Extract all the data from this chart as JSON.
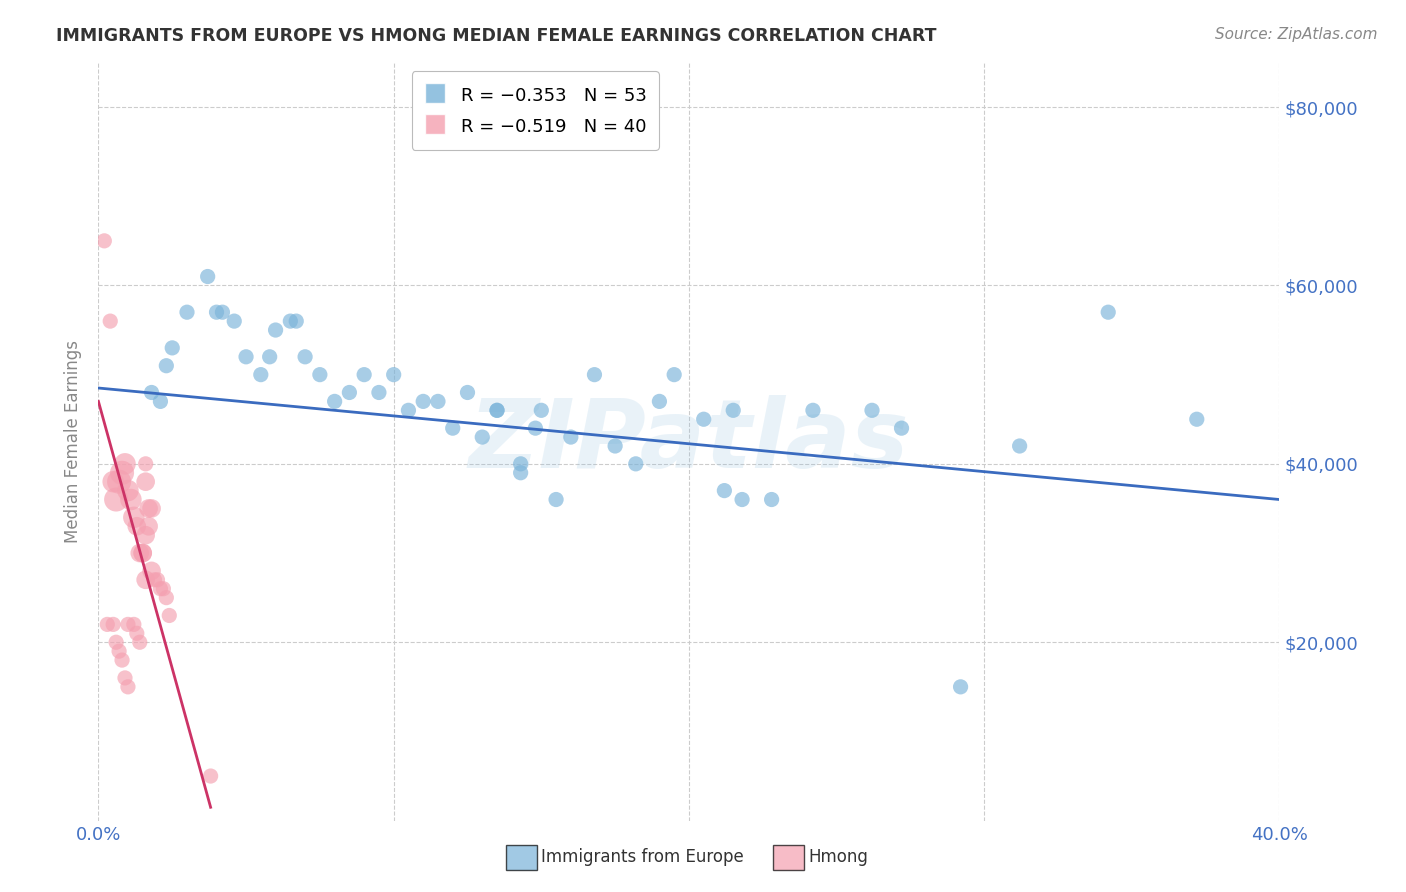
{
  "title": "IMMIGRANTS FROM EUROPE VS HMONG MEDIAN FEMALE EARNINGS CORRELATION CHART",
  "source": "Source: ZipAtlas.com",
  "ylabel": "Median Female Earnings",
  "xlim": [
    0.0,
    0.4
  ],
  "ylim": [
    0,
    85000
  ],
  "yticks": [
    0,
    20000,
    40000,
    60000,
    80000
  ],
  "ytick_labels_right": [
    "",
    "$20,000",
    "$40,000",
    "$60,000",
    "$80,000"
  ],
  "xticks": [
    0.0,
    0.05,
    0.1,
    0.15,
    0.2,
    0.25,
    0.3,
    0.35,
    0.4
  ],
  "xtick_labels": [
    "0.0%",
    "",
    "",
    "",
    "",
    "",
    "",
    "",
    "40.0%"
  ],
  "background_color": "#ffffff",
  "grid_color": "#cccccc",
  "blue_color": "#7ab3d9",
  "pink_color": "#f4a0b0",
  "blue_line_color": "#3a6bbf",
  "pink_line_color": "#cc3366",
  "label1": "Immigrants from Europe",
  "label2": "Hmong",
  "watermark": "ZIPatlas",
  "tick_label_color": "#4472c4",
  "ylabel_color": "#888888",
  "title_color": "#333333",
  "blue_scatter_x": [
    0.018,
    0.021,
    0.025,
    0.023,
    0.03,
    0.037,
    0.04,
    0.042,
    0.046,
    0.05,
    0.055,
    0.058,
    0.06,
    0.065,
    0.067,
    0.07,
    0.075,
    0.08,
    0.085,
    0.09,
    0.095,
    0.1,
    0.105,
    0.11,
    0.115,
    0.12,
    0.125,
    0.13,
    0.135,
    0.143,
    0.148,
    0.155,
    0.16,
    0.168,
    0.175,
    0.182,
    0.195,
    0.205,
    0.212,
    0.218,
    0.228,
    0.242,
    0.262,
    0.272,
    0.292,
    0.312,
    0.342,
    0.372,
    0.143,
    0.15,
    0.19,
    0.135,
    0.215
  ],
  "blue_scatter_y": [
    48000,
    47000,
    53000,
    51000,
    57000,
    61000,
    57000,
    57000,
    56000,
    52000,
    50000,
    52000,
    55000,
    56000,
    56000,
    52000,
    50000,
    47000,
    48000,
    50000,
    48000,
    50000,
    46000,
    47000,
    47000,
    44000,
    48000,
    43000,
    46000,
    40000,
    44000,
    36000,
    43000,
    50000,
    42000,
    40000,
    50000,
    45000,
    37000,
    36000,
    36000,
    46000,
    46000,
    44000,
    15000,
    42000,
    57000,
    45000,
    39000,
    46000,
    47000,
    46000,
    46000
  ],
  "pink_scatter_x": [
    0.002,
    0.004,
    0.005,
    0.006,
    0.007,
    0.008,
    0.009,
    0.01,
    0.011,
    0.012,
    0.013,
    0.014,
    0.015,
    0.016,
    0.017,
    0.018,
    0.019,
    0.02,
    0.021,
    0.022,
    0.023,
    0.024,
    0.016,
    0.017,
    0.018,
    0.015,
    0.016,
    0.003,
    0.005,
    0.006,
    0.007,
    0.008,
    0.009,
    0.01,
    0.01,
    0.012,
    0.013,
    0.014,
    0.038,
    0.016
  ],
  "pink_scatter_y": [
    65000,
    56000,
    38000,
    36000,
    38000,
    39000,
    40000,
    37000,
    36000,
    34000,
    33000,
    30000,
    30000,
    32000,
    33000,
    28000,
    27000,
    27000,
    26000,
    26000,
    25000,
    23000,
    38000,
    35000,
    35000,
    30000,
    27000,
    22000,
    22000,
    20000,
    19000,
    18000,
    16000,
    15000,
    22000,
    22000,
    21000,
    20000,
    5000,
    40000
  ],
  "pink_scatter_size_multiplier": [
    1.0,
    1.0,
    2.0,
    2.5,
    2.5,
    2.5,
    2.0,
    2.0,
    2.0,
    2.0,
    1.5,
    1.5,
    1.5,
    1.5,
    1.5,
    1.5,
    1.0,
    1.0,
    1.0,
    1.0,
    1.0,
    1.0,
    1.5,
    1.5,
    1.5,
    1.5,
    1.5,
    1.0,
    1.0,
    1.0,
    1.0,
    1.0,
    1.0,
    1.0,
    1.0,
    1.0,
    1.0,
    1.0,
    1.0,
    1.0
  ],
  "blue_trend_x": [
    0.0,
    0.4
  ],
  "blue_trend_y": [
    48500,
    36000
  ],
  "pink_trend_x": [
    0.0,
    0.038
  ],
  "pink_trend_y": [
    47000,
    1500
  ]
}
